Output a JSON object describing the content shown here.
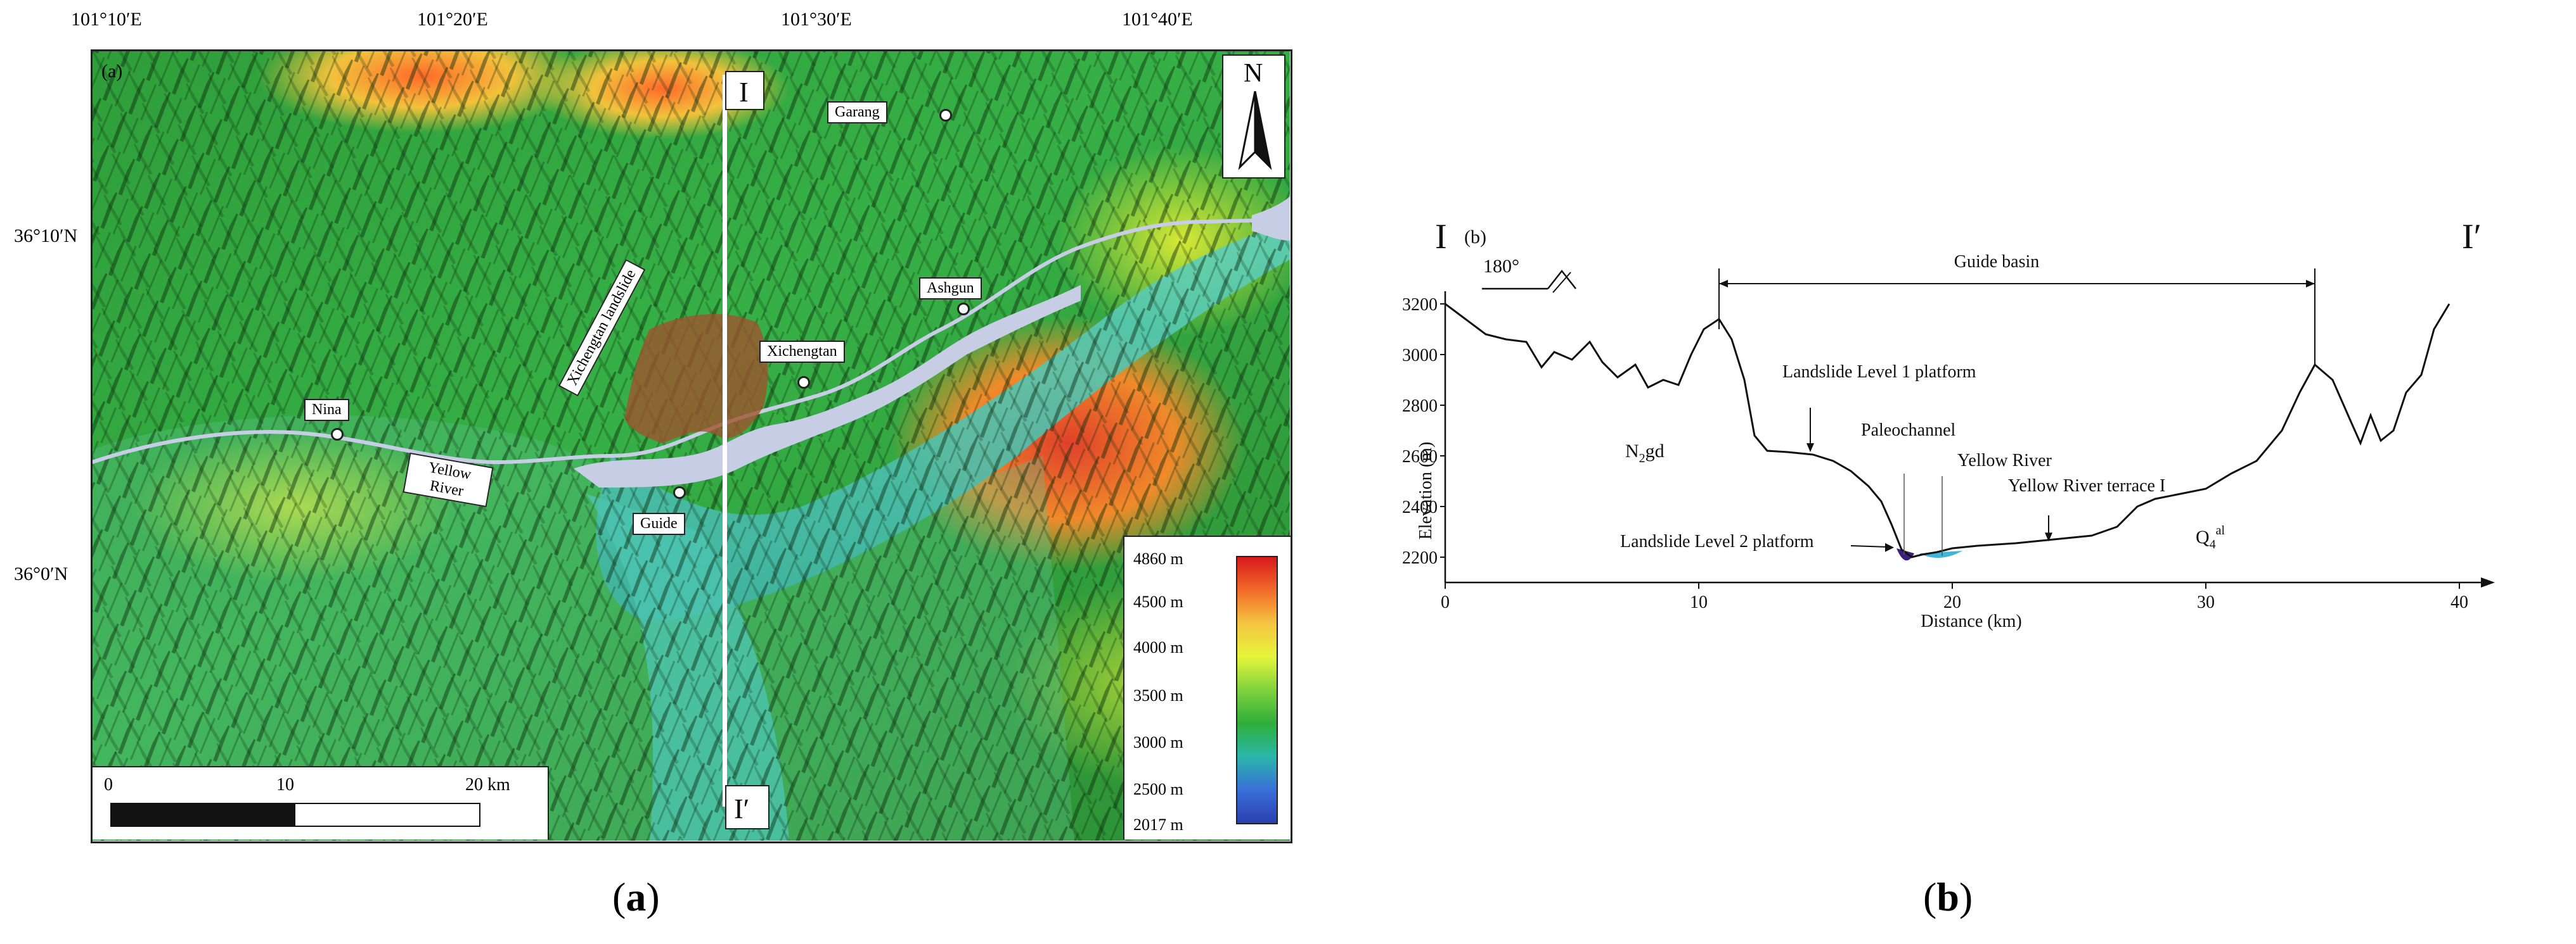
{
  "map_panel": {
    "tag": "(a)",
    "lon_labels": [
      "101°10′E",
      "101°20′E",
      "101°30′E",
      "101°40′E"
    ],
    "lat_labels": [
      "36°10′N",
      "36°0′N"
    ],
    "north_letter": "N",
    "section_start": "I",
    "section_end": "I′",
    "places": {
      "garang": "Garang",
      "ashgun": "Ashgun",
      "xichengtan": "Xichengtan",
      "nina": "Nina",
      "guide": "Guide",
      "yellow_river": "Yellow River"
    },
    "landslide_label": "Xichengtan landslide",
    "scale_bar": {
      "ticks": [
        "0",
        "10",
        "20 km"
      ]
    },
    "elevation_legend": {
      "labels": [
        "4860 m",
        "4500 m",
        "4000 m",
        "3500 m",
        "3000 m",
        "2500 m",
        "2017 m"
      ],
      "colors": [
        "#d7191c",
        "#f26b2a",
        "#f5c542",
        "#e6f53b",
        "#7ed23e",
        "#2fae3a",
        "#2ab7a9",
        "#3a6fd8",
        "#2a3fb0"
      ]
    },
    "colors": {
      "river": "#c8cde6",
      "landslide": "#a0522d"
    }
  },
  "profile_panel": {
    "tag": "(b)",
    "start_label": "I",
    "end_label": "I′",
    "strike_label": "180°",
    "annotations": {
      "guide_basin": "Guide basin",
      "level1": "Landslide Level 1 platform",
      "paleochannel": "Paleochannel",
      "yellow_river": "Yellow River",
      "terrace": "Yellow River terrace I",
      "level2": "Landslide Level 2 platform",
      "n2gd_base": "N",
      "n2gd_sub": "2",
      "n2gd_tail": "gd",
      "q4_base": "Q",
      "q4_sub": "4",
      "q4_sup": "al"
    },
    "colors": {
      "paleochannel_fill": "#3b1f7a",
      "river_fill": "#3fb6d8"
    }
  },
  "chart_data": {
    "type": "line",
    "xlabel": "Distance (km)",
    "ylabel": "Elevation (m)",
    "xlim": [
      0,
      40
    ],
    "ylim": [
      2100,
      3400
    ],
    "xticks": [
      0,
      10,
      20,
      30,
      40
    ],
    "yticks": [
      2200,
      2400,
      2600,
      2800,
      3000,
      3200
    ],
    "series": [
      {
        "x": [
          0,
          0.8,
          1.6,
          2.4,
          3.2,
          3.8,
          4.3,
          5.0,
          5.7,
          6.2,
          6.8,
          7.5,
          8.0,
          8.6,
          9.2,
          9.7,
          10.2,
          10.8,
          11.3,
          11.8,
          12.2,
          12.7,
          13.5,
          14.5,
          15.3,
          16.0,
          16.7,
          17.2,
          17.6,
          18.0,
          18.4,
          18.8,
          19.4,
          20.0,
          21.0,
          22.5,
          24.0,
          25.5,
          26.5,
          27.3,
          28.0,
          29.0,
          30.0,
          31.0,
          32.0,
          33.0,
          33.7,
          34.3,
          35.0,
          35.7,
          36.1,
          36.5,
          36.9,
          37.4,
          37.9,
          38.5,
          39.0,
          39.6
        ],
        "y": [
          3200,
          3140,
          3080,
          3060,
          3050,
          2950,
          3010,
          2980,
          3050,
          2970,
          2910,
          2960,
          2870,
          2900,
          2880,
          3000,
          3100,
          3140,
          3060,
          2900,
          2680,
          2620,
          2615,
          2605,
          2580,
          2540,
          2480,
          2420,
          2330,
          2230,
          2200,
          2210,
          2220,
          2235,
          2245,
          2255,
          2270,
          2285,
          2320,
          2400,
          2430,
          2450,
          2470,
          2530,
          2580,
          2700,
          2850,
          2960,
          2900,
          2740,
          2650,
          2760,
          2660,
          2700,
          2850,
          2920,
          3100,
          3200
        ]
      }
    ],
    "grid": false
  },
  "captions": {
    "a": "a",
    "b": "b"
  }
}
